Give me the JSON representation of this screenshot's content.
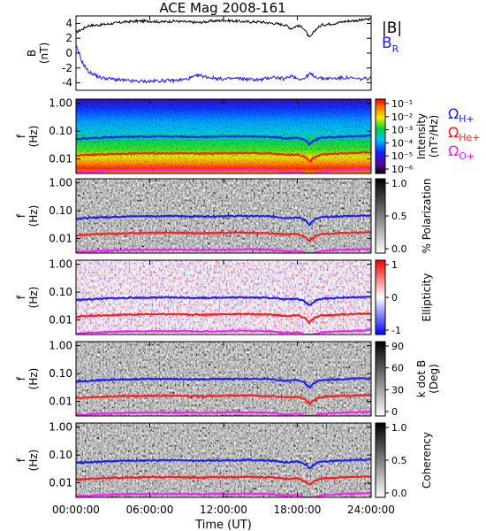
{
  "title": "ACE Mag 2008-161",
  "time_axis": {
    "label": "Time (UT)",
    "ticks": [
      "00:00:00",
      "06:00:00",
      "12:00:00",
      "18:00:00",
      "24:00:00"
    ],
    "range_hours": [
      0,
      24
    ]
  },
  "colors": {
    "B_total": "#000000",
    "B_R": "#1a1aff",
    "omega_H": "#1a1aff",
    "omega_He": "#ff1a1a",
    "omega_O": "#ff1aff"
  },
  "chart_data": [
    {
      "type": "line",
      "name": "B",
      "ylabel": "B",
      "yunit": "(nT)",
      "ylim": [
        -5,
        5
      ],
      "yticks": [
        "4",
        "2",
        "0",
        "-2",
        "-4"
      ],
      "legend": [
        {
          "label": "|B|",
          "color": "#000000"
        },
        {
          "label": "B",
          "subscript": "R",
          "color": "#1a1aff"
        }
      ],
      "x_hours": [
        0,
        0.5,
        1,
        2,
        3,
        4,
        5,
        6,
        7,
        8,
        9,
        10,
        11,
        12,
        13,
        14,
        15,
        16,
        17,
        17.5,
        18,
        18.5,
        19,
        19.5,
        20,
        21,
        22,
        23,
        24
      ],
      "series": [
        {
          "name": "|B|",
          "values": [
            2.8,
            3.2,
            3.7,
            3.8,
            4.0,
            4.2,
            4.3,
            4.3,
            4.2,
            4.3,
            4.2,
            4.1,
            4.3,
            4.4,
            4.3,
            4.2,
            4.2,
            4.0,
            3.8,
            3.3,
            3.7,
            3.4,
            2.0,
            3.2,
            3.8,
            4.0,
            4.3,
            4.4,
            4.6
          ]
        },
        {
          "name": "BR",
          "values": [
            1.0,
            -1.2,
            -2.5,
            -3.3,
            -3.5,
            -3.7,
            -3.8,
            -3.8,
            -3.7,
            -3.7,
            -3.5,
            -3.0,
            -3.3,
            -3.5,
            -3.4,
            -3.5,
            -3.6,
            -3.2,
            -3.5,
            -3.0,
            -3.4,
            -3.5,
            -2.8,
            -3.2,
            -3.4,
            -3.4,
            -3.3,
            -3.5,
            -3.4
          ]
        }
      ]
    },
    {
      "type": "heatmap",
      "name": "Intensity",
      "ylabel": "f",
      "yunit": "(Hz)",
      "yticks": [
        "1.00",
        "0.10",
        "0.01"
      ],
      "colorbar": {
        "label": "Intensity",
        "unit": "(nT²/Hz)",
        "ticks": [
          "10⁻¹",
          "10⁻²",
          "10⁻³",
          "10⁻⁴",
          "10⁻⁵",
          "10⁻⁶"
        ],
        "scale": "rainbow"
      },
      "legend": [
        {
          "label": "Ω",
          "subscript": "H+",
          "color": "#1a1aff"
        },
        {
          "label": "Ω",
          "subscript": "He+",
          "color": "#ff1a1a"
        },
        {
          "label": "Ω",
          "subscript": "O+",
          "color": "#ff1aff"
        }
      ]
    },
    {
      "type": "heatmap",
      "name": "% Polarization",
      "ylabel": "f",
      "yunit": "(Hz)",
      "yticks": [
        "1.00",
        "0.10",
        "0.01"
      ],
      "colorbar": {
        "label": "% Polarization",
        "unit": "",
        "ticks": [
          "1.0",
          "0.5",
          "0.0"
        ],
        "scale": "gray"
      }
    },
    {
      "type": "heatmap",
      "name": "Ellipticity",
      "ylabel": "f",
      "yunit": "(Hz)",
      "yticks": [
        "1.00",
        "0.10",
        "0.01"
      ],
      "colorbar": {
        "label": "Ellipticity",
        "unit": "",
        "ticks": [
          "1",
          "0",
          "-1"
        ],
        "scale": "bwr"
      }
    },
    {
      "type": "heatmap",
      "name": "k dot B",
      "ylabel": "f",
      "yunit": "(Hz)",
      "yticks": [
        "1.00",
        "0.10",
        "0.01"
      ],
      "colorbar": {
        "label": "k dot B",
        "unit": "(Deg)",
        "ticks": [
          "90",
          "60",
          "30",
          "0"
        ],
        "scale": "gray"
      }
    },
    {
      "type": "heatmap",
      "name": "Coherency",
      "ylabel": "f",
      "yunit": "(Hz)",
      "yticks": [
        "1.00",
        "0.10",
        "0.01"
      ],
      "colorbar": {
        "label": "Coherency",
        "unit": "",
        "ticks": [
          "1.0",
          "0.5",
          "0.0"
        ],
        "scale": "gray"
      }
    }
  ],
  "gyrofrequency_hz": {
    "x_hours": [
      0,
      1,
      2,
      4,
      6,
      8,
      10,
      12,
      14,
      16,
      17,
      18,
      18.5,
      19,
      19.5,
      20,
      22,
      24
    ],
    "H+": [
      0.052,
      0.055,
      0.058,
      0.062,
      0.064,
      0.064,
      0.062,
      0.064,
      0.065,
      0.062,
      0.055,
      0.058,
      0.05,
      0.032,
      0.05,
      0.058,
      0.064,
      0.068
    ],
    "He+": [
      0.013,
      0.014,
      0.0145,
      0.0155,
      0.016,
      0.016,
      0.0155,
      0.016,
      0.0163,
      0.0155,
      0.0138,
      0.0145,
      0.0125,
      0.008,
      0.0125,
      0.0145,
      0.016,
      0.017
    ],
    "O+": [
      0.0033,
      0.0034,
      0.0036,
      0.0039,
      0.004,
      0.004,
      0.0039,
      0.004,
      0.0041,
      0.0039,
      0.0034,
      0.0036,
      0.0031,
      0.002,
      0.0031,
      0.0036,
      0.004,
      0.0043
    ]
  }
}
